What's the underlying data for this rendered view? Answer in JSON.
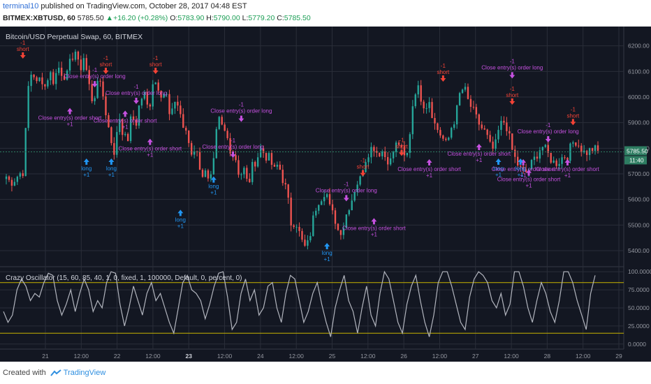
{
  "header": {
    "user": "terminal10",
    "published": " published on TradingView.com, October 28, 2017 04:48 EST",
    "symbol": "BITMEX:XBTUSD, 60",
    "last": "5785.50",
    "change": "+16.20 (+0.28%)",
    "o_label": "O:",
    "o": "5783.90",
    "h_label": "H:",
    "h": "5790.00",
    "l_label": "L:",
    "l": "5779.20",
    "c_label": "C:",
    "c": "5785.50"
  },
  "footer": {
    "created_with": "Created with",
    "brand": "TradingView"
  },
  "colors": {
    "background": "#131722",
    "grid": "#2a2e39",
    "up": "#26a69a",
    "down": "#ef5350",
    "long": "#2196f3",
    "short": "#f44336",
    "close": "#c651e0",
    "osc": "#b2b5be",
    "level": "#c8b400",
    "price_tag": "#2e7d62",
    "axis_text": "#9598a1"
  },
  "chart_data": [
    {
      "type": "candlestick",
      "title": "Bitcoin/USD Perpetual Swap, 60, BITMEX",
      "ylim": [
        5340,
        6270
      ],
      "y_ticks": [
        5400,
        5500,
        5600,
        5700,
        5800,
        5900,
        6000,
        6100,
        6200
      ],
      "y_tick_labels": [
        "5400.00",
        "5500.00",
        "5600.00",
        "5700.00",
        "5800.00",
        "5900.00",
        "6000.00",
        "6100.00",
        "6200.00"
      ],
      "x_ticks": [
        "21",
        "12:00",
        "22",
        "12:00",
        "23",
        "12:00",
        "24",
        "12:00",
        "25",
        "12:00",
        "26",
        "12:00",
        "27",
        "12:00",
        "28",
        "12:00",
        "29"
      ],
      "bold_x_ticks": [
        "23"
      ],
      "last_price_label": "5785.50",
      "countdown_label": "11:40",
      "close_path": [
        5690,
        5665,
        5680,
        5700,
        5710,
        6030,
        6110,
        6050,
        6080,
        6040,
        6100,
        6060,
        6120,
        6090,
        6080,
        6150,
        6180,
        6100,
        6160,
        6060,
        5980,
        6040,
        6070,
        5930,
        5870,
        5760,
        5940,
        5860,
        5820,
        5930,
        5890,
        5990,
        6010,
        5940,
        6070,
        6050,
        6010,
        6020,
        5900,
        5990,
        5960,
        5880,
        5840,
        5770,
        5820,
        5680,
        5730,
        5650,
        5740,
        5920,
        5880,
        5850,
        5790,
        5770,
        5690,
        5720,
        5650,
        5730,
        5760,
        5800,
        5770,
        5760,
        5710,
        5740,
        5680,
        5630,
        5500,
        5520,
        5460,
        5410,
        5430,
        5520,
        5590,
        5610,
        5640,
        5560,
        5530,
        5470,
        5490,
        5560,
        5600,
        5660,
        5680,
        5750,
        5790,
        5810,
        5780,
        5790,
        5760,
        5750,
        5810,
        5820,
        5760,
        5780,
        5960,
        6050,
        6000,
        5960,
        5990,
        5900,
        5870,
        5840,
        5810,
        5880,
        5920,
        6010,
        6040,
        5980,
        5950,
        5910,
        5880,
        5860,
        5810,
        5790,
        5870,
        5910,
        5880,
        5800,
        5750,
        5720,
        5700,
        5720,
        5750,
        5780,
        5810,
        5790,
        5760,
        5740,
        5750,
        5770,
        5770,
        5820,
        5830,
        5800,
        5780,
        5790,
        5800,
        5786
      ],
      "signals": [
        {
          "kind": "short",
          "text": "short",
          "qty": "-1",
          "i": 6,
          "price": 6150
        },
        {
          "kind": "close",
          "text": "Close entry(s) order short",
          "qty": "+1",
          "i": 23,
          "price": 5930
        },
        {
          "kind": "close",
          "text": "Close entry(s) order long",
          "qty": "-1",
          "i": 32,
          "price": 6065
        },
        {
          "kind": "short",
          "text": "short",
          "qty": "-1",
          "i": 36,
          "price": 6090
        },
        {
          "kind": "long",
          "text": "long",
          "qty": "+1",
          "i": 29,
          "price": 5760
        },
        {
          "kind": "close",
          "text": "Close entry(s) order short",
          "qty": "+1",
          "i": 43,
          "price": 5920
        },
        {
          "kind": "close",
          "text": "Close entry(s) order long",
          "qty": "-1",
          "i": 47,
          "price": 6000
        },
        {
          "kind": "short",
          "text": "short",
          "qty": "-1",
          "i": 54,
          "price": 6090
        },
        {
          "kind": "long",
          "text": "long",
          "qty": "+1",
          "i": 38,
          "price": 5760
        },
        {
          "kind": "close",
          "text": "Close entry(s) order short",
          "qty": "+1",
          "i": 52,
          "price": 5810
        },
        {
          "kind": "long",
          "text": "long",
          "qty": "+1",
          "i": 75,
          "price": 5690
        },
        {
          "kind": "close",
          "text": "Close entry(s) order long",
          "qty": "-1",
          "i": 85,
          "price": 5930
        },
        {
          "kind": "long",
          "text": "long",
          "qty": "+1",
          "i": 63,
          "price": 5560
        },
        {
          "kind": "close",
          "text": "Close entry(s) order long",
          "qty": "-1",
          "i": 82,
          "price": 5790
        },
        {
          "kind": "long",
          "text": "long",
          "qty": "+1",
          "i": 116,
          "price": 5430
        },
        {
          "kind": "close",
          "text": "Close entry(s) order long",
          "qty": "-1",
          "i": 123,
          "price": 5620
        },
        {
          "kind": "short",
          "text": "short",
          "qty": "-1",
          "i": 129,
          "price": 5690
        },
        {
          "kind": "close",
          "text": "Close entry(s) order short",
          "qty": "+1",
          "i": 133,
          "price": 5500
        },
        {
          "kind": "short",
          "text": "short",
          "qty": "-1",
          "i": 143,
          "price": 5770
        },
        {
          "kind": "close",
          "text": "Close entry(s) order short",
          "qty": "+1",
          "i": 153,
          "price": 5730
        },
        {
          "kind": "short",
          "text": "short",
          "qty": "-1",
          "i": 158,
          "price": 6060
        },
        {
          "kind": "close",
          "text": "Close entry(s) order short",
          "qty": "+1",
          "i": 171,
          "price": 5790
        },
        {
          "kind": "close",
          "text": "Close entry(s) order long",
          "qty": "-1",
          "i": 183,
          "price": 6100
        },
        {
          "kind": "long",
          "text": "long",
          "qty": "+1",
          "i": 178,
          "price": 5760
        },
        {
          "kind": "short",
          "text": "short",
          "qty": "-1",
          "i": 183,
          "price": 5970
        },
        {
          "kind": "close",
          "text": "Close entry(s) order short",
          "qty": "+1",
          "i": 187,
          "price": 5730
        },
        {
          "kind": "long",
          "text": "long",
          "qty": "+1",
          "i": 186,
          "price": 5760
        },
        {
          "kind": "close",
          "text": "Close entry(s) order short",
          "qty": "+1",
          "i": 189,
          "price": 5690
        },
        {
          "kind": "close",
          "text": "Close entry(s) order long",
          "qty": "-1",
          "i": 196,
          "price": 5850
        },
        {
          "kind": "close",
          "text": "Close entry(s) order short",
          "qty": "+1",
          "i": 203,
          "price": 5730
        },
        {
          "kind": "short",
          "text": "short",
          "qty": "-1",
          "i": 205,
          "price": 5890
        }
      ]
    },
    {
      "type": "line",
      "title": "Crazy Oscillator (15, 60, 85, 40, 1, 0, fixed, 1, 100000, Default, 0, percent, 0)",
      "ylim": [
        -7,
        106
      ],
      "y_ticks": [
        0,
        25,
        50,
        75,
        100
      ],
      "y_tick_labels": [
        "0.0000",
        "25.0000",
        "50.0000",
        "75.0000",
        "100.0000"
      ],
      "levels": [
        85,
        15
      ],
      "values": [
        45,
        30,
        40,
        75,
        90,
        80,
        60,
        70,
        65,
        85,
        98,
        95,
        60,
        40,
        55,
        75,
        45,
        70,
        90,
        75,
        45,
        60,
        50,
        85,
        100,
        98,
        55,
        25,
        50,
        80,
        60,
        40,
        70,
        85,
        60,
        70,
        50,
        30,
        15,
        50,
        85,
        95,
        75,
        70,
        60,
        35,
        55,
        80,
        98,
        100,
        65,
        20,
        30,
        70,
        90,
        60,
        75,
        40,
        50,
        80,
        85,
        50,
        30,
        70,
        95,
        90,
        60,
        30,
        45,
        70,
        85,
        55,
        30,
        10,
        50,
        75,
        95,
        60,
        45,
        15,
        50,
        80,
        40,
        25,
        70,
        100,
        90,
        60,
        30,
        15,
        55,
        80,
        95,
        60,
        30,
        10,
        40,
        85,
        100,
        100,
        80,
        55,
        30,
        20,
        65,
        90,
        100,
        95,
        85,
        60,
        50,
        70,
        40,
        55,
        100,
        100,
        80,
        50,
        30,
        60,
        85,
        70,
        45,
        30,
        60,
        100,
        100,
        85,
        60,
        40,
        20,
        70,
        95
      ]
    }
  ]
}
